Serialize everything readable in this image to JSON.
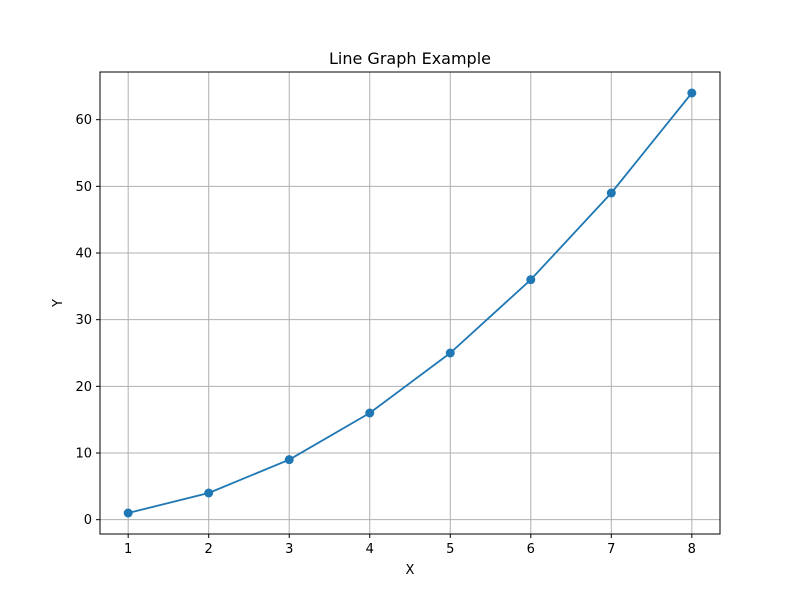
{
  "chart_data": {
    "type": "line",
    "title": "Line Graph Example",
    "xlabel": "X",
    "ylabel": "Y",
    "x": [
      1,
      2,
      3,
      4,
      5,
      6,
      7,
      8
    ],
    "series": [
      {
        "values": [
          1,
          4,
          9,
          16,
          25,
          36,
          49,
          64
        ],
        "color": "#1f77b4",
        "marker": "circle"
      }
    ],
    "x_ticks": [
      1,
      2,
      3,
      4,
      5,
      6,
      7,
      8
    ],
    "y_ticks": [
      0,
      10,
      20,
      30,
      40,
      50,
      60
    ],
    "xlim": [
      0.65,
      8.35
    ],
    "ylim": [
      -2.15,
      67.15
    ],
    "grid": true,
    "colors": {
      "line": "#1f77b4",
      "grid": "#b0b0b0",
      "axes": "#000000",
      "background": "#ffffff"
    }
  }
}
